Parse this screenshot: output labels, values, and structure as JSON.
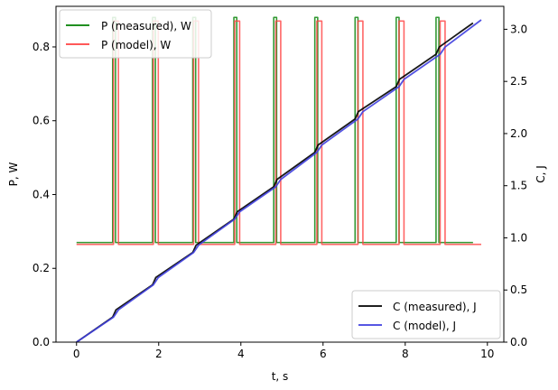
{
  "chart_data": {
    "type": "line",
    "xlabel": "t, s",
    "ylabel_left": "P, W",
    "ylabel_right": "C, J",
    "xlim": [
      -0.5,
      10.4
    ],
    "ylim_left": [
      0,
      0.91
    ],
    "ylim_right": [
      0,
      3.22
    ],
    "x_ticks": [
      0,
      2,
      4,
      6,
      8,
      10
    ],
    "x_tick_labels": [
      "0",
      "2",
      "4",
      "6",
      "8",
      "10"
    ],
    "y_left_ticks": [
      0.0,
      0.2,
      0.4,
      0.6,
      0.8
    ],
    "y_left_tick_labels": [
      "0.0",
      "0.2",
      "0.4",
      "0.6",
      "0.8"
    ],
    "y_right_ticks": [
      0.0,
      0.5,
      1.0,
      1.5,
      2.0,
      2.5,
      3.0
    ],
    "y_right_tick_labels": [
      "0.0",
      "0.5",
      "1.0",
      "1.5",
      "2.0",
      "2.5",
      "3.0"
    ],
    "grid": false,
    "legend_left": {
      "placement": "upper-left",
      "entries": [
        "P (measured), W",
        "P (model), W"
      ]
    },
    "legend_right": {
      "placement": "lower-right",
      "entries": [
        "C (measured), J",
        "C (model), J"
      ]
    },
    "series": [
      {
        "name": "P (measured), W",
        "axis": "left",
        "color": "#007f00",
        "baseline": 0.27,
        "peak": 0.88,
        "x_range": [
          0,
          9.65
        ],
        "pulses": [
          [
            0.88,
            0.95
          ],
          [
            1.85,
            1.92
          ],
          [
            2.83,
            2.9
          ],
          [
            3.83,
            3.9
          ],
          [
            4.8,
            4.87
          ],
          [
            5.8,
            5.87
          ],
          [
            6.78,
            6.85
          ],
          [
            7.78,
            7.85
          ],
          [
            8.75,
            8.82
          ]
        ]
      },
      {
        "name": "P (model), W",
        "axis": "left",
        "color": "#ff4040",
        "baseline": 0.265,
        "peak": 0.87,
        "x_range": [
          0,
          9.85
        ],
        "pulses": [
          [
            0.9,
            1.02
          ],
          [
            1.87,
            1.99
          ],
          [
            2.85,
            2.97
          ],
          [
            3.85,
            3.97
          ],
          [
            4.85,
            4.97
          ],
          [
            5.85,
            5.97
          ],
          [
            6.85,
            6.97
          ],
          [
            7.85,
            7.97
          ],
          [
            8.85,
            8.97
          ]
        ]
      },
      {
        "name": "C (measured), J",
        "axis": "right",
        "color": "#000000",
        "x": [
          0,
          0.88,
          0.96,
          1.85,
          1.93,
          2.83,
          2.91,
          3.83,
          3.91,
          4.8,
          4.88,
          5.8,
          5.88,
          6.78,
          6.86,
          7.78,
          7.86,
          8.75,
          8.83,
          9.65
        ],
        "y": [
          0,
          0.24,
          0.31,
          0.55,
          0.62,
          0.86,
          0.93,
          1.18,
          1.25,
          1.49,
          1.56,
          1.82,
          1.89,
          2.14,
          2.21,
          2.45,
          2.52,
          2.76,
          2.83,
          3.06
        ]
      },
      {
        "name": "C (model), J",
        "axis": "right",
        "color": "#3f3fdf",
        "x": [
          0,
          0.9,
          1.02,
          1.87,
          1.99,
          2.85,
          2.97,
          3.85,
          3.97,
          4.85,
          4.97,
          5.85,
          5.97,
          6.85,
          6.97,
          7.85,
          7.97,
          8.85,
          8.97,
          9.85
        ],
        "y": [
          0,
          0.24,
          0.31,
          0.55,
          0.62,
          0.86,
          0.93,
          1.18,
          1.25,
          1.49,
          1.56,
          1.82,
          1.89,
          2.14,
          2.21,
          2.45,
          2.52,
          2.76,
          2.83,
          3.09
        ]
      }
    ]
  }
}
